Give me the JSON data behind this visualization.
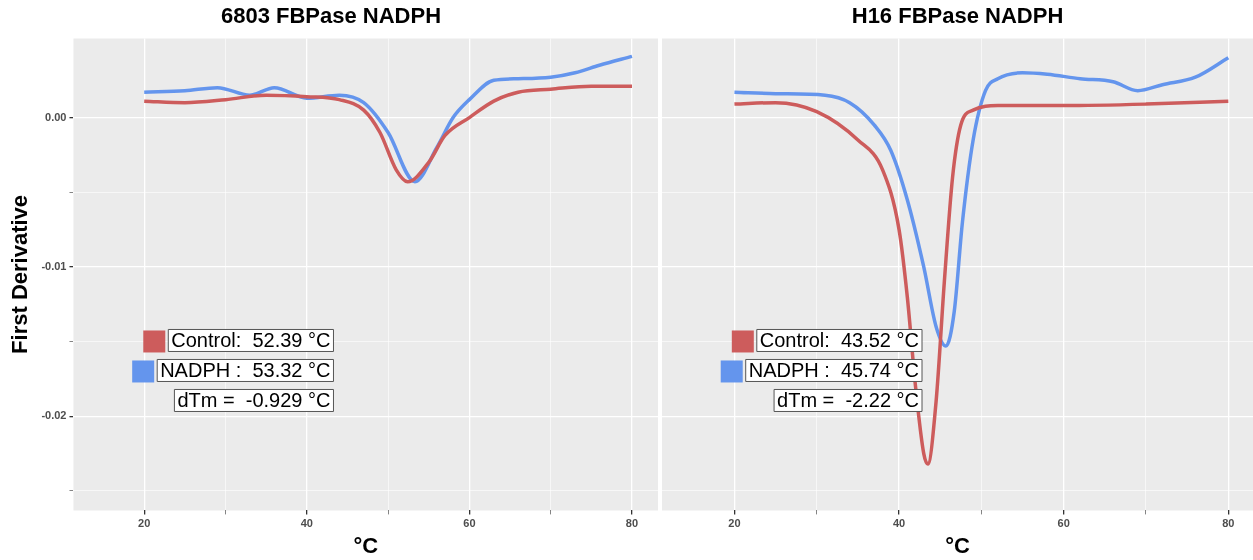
{
  "chart_data": [
    {
      "type": "line",
      "title": "6803 FBPase NADPH",
      "xlabel": "°C",
      "ylabel": "First Derivative",
      "xlim": [
        11.3,
        83.2
      ],
      "ylim": [
        -0.0263,
        0.0053
      ],
      "xticks": [
        20,
        {
          "value": 30,
          "label": null
        },
        40,
        {
          "value": 50,
          "label": null
        },
        60,
        {
          "value": 70,
          "label": null
        },
        80
      ],
      "yticks": [
        {
          "value": -0.025,
          "label": null
        },
        -0.02,
        {
          "value": -0.015,
          "label": null
        },
        -0.01,
        {
          "value": -0.005,
          "label": null
        },
        {
          "value": 0,
          "label": "0.00"
        }
      ],
      "grid": true,
      "legend": "bottom left",
      "annotations": [
        "dTm =  -0.929 °C"
      ],
      "series": [
        {
          "name": "Control:  52.39 °C",
          "color": "#cd5c5c",
          "x": [
            20,
            25,
            30,
            35,
            40,
            44,
            47,
            49,
            51,
            52.4,
            55,
            57,
            60,
            63,
            66,
            70,
            75,
            80
          ],
          "values": [
            0.0011,
            0.001,
            0.0012,
            0.0015,
            0.0014,
            0.0012,
            0.0005,
            -0.001,
            -0.0035,
            -0.0043,
            -0.003,
            -0.0012,
            0.0,
            0.0011,
            0.0017,
            0.0019,
            0.0021,
            0.0021
          ]
        },
        {
          "name": "NADPH :  53.32 °C",
          "color": "#6495ed",
          "x": [
            20,
            25,
            29,
            33,
            36,
            40,
            44,
            47,
            50,
            53.3,
            56,
            58,
            60,
            63,
            66,
            70,
            73,
            76,
            80
          ],
          "values": [
            0.0017,
            0.0018,
            0.002,
            0.0015,
            0.002,
            0.0013,
            0.0015,
            0.001,
            -0.001,
            -0.0043,
            -0.002,
            0.0,
            0.0012,
            0.0025,
            0.0026,
            0.0027,
            0.003,
            0.0035,
            0.0041
          ]
        }
      ]
    },
    {
      "type": "line",
      "title": "H16 FBPase NADPH",
      "xlabel": "°C",
      "xlim": [
        11.2,
        83.0
      ],
      "ylim": [
        -0.0263,
        0.0053
      ],
      "tick_labels": "x",
      "xticks": [
        20,
        {
          "value": 30,
          "label": null
        },
        40,
        {
          "value": 50,
          "label": null
        },
        60,
        {
          "value": 70,
          "label": null
        },
        80
      ],
      "yticks": [
        {
          "value": -0.025,
          "label": null
        },
        -0.02,
        {
          "value": -0.015,
          "label": null
        },
        -0.01,
        {
          "value": -0.005,
          "label": null
        },
        0
      ],
      "grid": true,
      "legend": "bottom left",
      "annotations": [
        "dTm =  -2.22 °C"
      ],
      "series": [
        {
          "name": "Control:  43.52 °C",
          "color": "#cd5c5c",
          "x": [
            20,
            25,
            30,
            35,
            38,
            40,
            41,
            42,
            43,
            43.5,
            44.5,
            45.5,
            46.5,
            47.5,
            49,
            52,
            60,
            70,
            80
          ],
          "values": [
            0.0009,
            0.001,
            0.0004,
            -0.0015,
            -0.0035,
            -0.0075,
            -0.012,
            -0.018,
            -0.0225,
            -0.0232,
            -0.019,
            -0.011,
            -0.004,
            -0.0005,
            0.0005,
            0.0008,
            0.0008,
            0.0009,
            0.0011
          ]
        },
        {
          "name": "NADPH :  45.74 °C",
          "color": "#6495ed",
          "x": [
            20,
            25,
            31,
            34,
            37,
            39,
            41,
            43,
            44.5,
            45.7,
            46.7,
            47.7,
            49,
            50.5,
            52,
            55,
            58,
            62,
            66,
            69,
            72,
            76,
            80
          ],
          "values": [
            0.0017,
            0.0016,
            0.0015,
            0.001,
            -0.0005,
            -0.0022,
            -0.0055,
            -0.01,
            -0.014,
            -0.0153,
            -0.013,
            -0.007,
            -0.0015,
            0.0018,
            0.0026,
            0.003,
            0.0029,
            0.0026,
            0.0024,
            0.0018,
            0.0022,
            0.0027,
            0.004
          ]
        }
      ]
    }
  ]
}
